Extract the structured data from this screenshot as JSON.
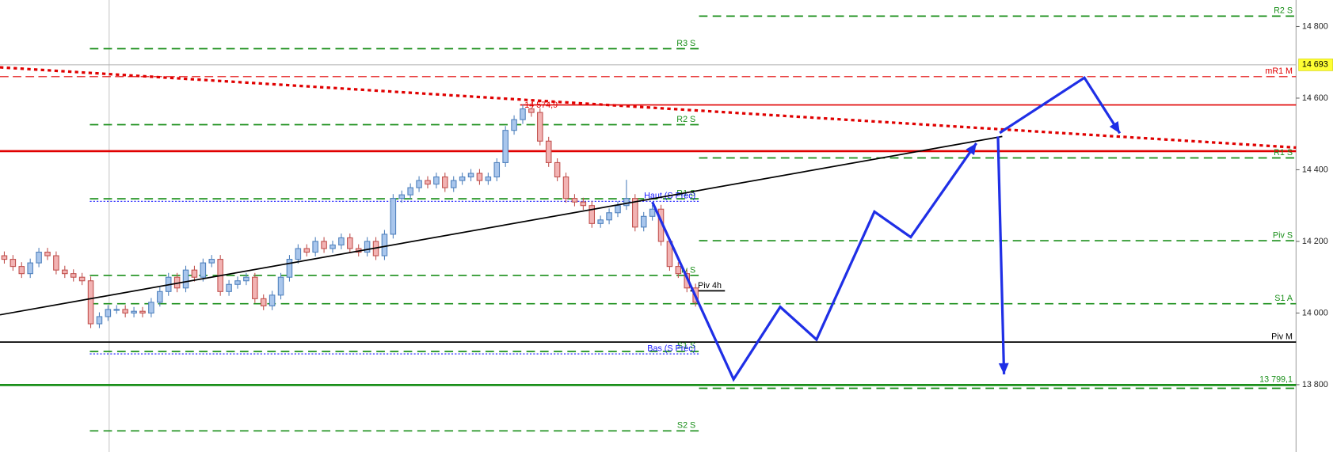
{
  "chart_data": {
    "type": "candlestick",
    "xlim": [
      -0.5,
      149.5
    ],
    "ylim": [
      13612,
      14874
    ],
    "yticks": [
      {
        "value": 13800,
        "label": "13 800"
      },
      {
        "value": 14000,
        "label": "14 000"
      },
      {
        "value": 14200,
        "label": "14 200"
      },
      {
        "value": 14400,
        "label": "14 400"
      },
      {
        "value": 14600,
        "label": "14 600"
      },
      {
        "value": 14800,
        "label": "14 800"
      }
    ],
    "up_color": "#4f81bd",
    "down_color": "#c0504d",
    "candles": [
      [
        14160,
        14172,
        14138,
        14150
      ],
      [
        14150,
        14162,
        14118,
        14130
      ],
      [
        14130,
        14142,
        14098,
        14110
      ],
      [
        14110,
        14152,
        14098,
        14140
      ],
      [
        14140,
        14182,
        14128,
        14170
      ],
      [
        14170,
        14182,
        14148,
        14160
      ],
      [
        14160,
        14172,
        14108,
        14120
      ],
      [
        14120,
        14132,
        14098,
        14110
      ],
      [
        14110,
        14122,
        14088,
        14100
      ],
      [
        14100,
        14112,
        14078,
        14090
      ],
      [
        14090,
        14102,
        13958,
        13970
      ],
      [
        13970,
        14002,
        13958,
        13990
      ],
      [
        13990,
        14022,
        13978,
        14010
      ],
      [
        14010,
        14022,
        13998,
        14010
      ],
      [
        14010,
        14022,
        13988,
        14000
      ],
      [
        14000,
        14017,
        13988,
        14005
      ],
      [
        14005,
        14017,
        13988,
        14000
      ],
      [
        14000,
        14042,
        13988,
        14030
      ],
      [
        14030,
        14072,
        14018,
        14060
      ],
      [
        14060,
        14112,
        14048,
        14100
      ],
      [
        14100,
        14112,
        14058,
        14070
      ],
      [
        14070,
        14132,
        14058,
        14120
      ],
      [
        14120,
        14132,
        14088,
        14100
      ],
      [
        14100,
        14152,
        14088,
        14140
      ],
      [
        14140,
        14162,
        14128,
        14150
      ],
      [
        14150,
        14162,
        14048,
        14060
      ],
      [
        14060,
        14092,
        14048,
        14080
      ],
      [
        14080,
        14102,
        14068,
        14090
      ],
      [
        14090,
        14112,
        14078,
        14100
      ],
      [
        14100,
        14112,
        14028,
        14040
      ],
      [
        14040,
        14052,
        14008,
        14020
      ],
      [
        14020,
        14062,
        14008,
        14050
      ],
      [
        14050,
        14112,
        14038,
        14100
      ],
      [
        14100,
        14162,
        14088,
        14150
      ],
      [
        14150,
        14192,
        14138,
        14180
      ],
      [
        14180,
        14192,
        14158,
        14170
      ],
      [
        14170,
        14212,
        14158,
        14200
      ],
      [
        14200,
        14212,
        14168,
        14180
      ],
      [
        14180,
        14202,
        14168,
        14190
      ],
      [
        14190,
        14222,
        14178,
        14210
      ],
      [
        14210,
        14222,
        14168,
        14180
      ],
      [
        14180,
        14192,
        14158,
        14170
      ],
      [
        14170,
        14212,
        14158,
        14200
      ],
      [
        14200,
        14212,
        14148,
        14160
      ],
      [
        14160,
        14232,
        14148,
        14220
      ],
      [
        14220,
        14332,
        14208,
        14320
      ],
      [
        14320,
        14342,
        14308,
        14330
      ],
      [
        14330,
        14362,
        14318,
        14350
      ],
      [
        14350,
        14382,
        14338,
        14370
      ],
      [
        14370,
        14382,
        14348,
        14360
      ],
      [
        14360,
        14392,
        14348,
        14380
      ],
      [
        14380,
        14392,
        14338,
        14350
      ],
      [
        14350,
        14382,
        14338,
        14370
      ],
      [
        14370,
        14392,
        14358,
        14380
      ],
      [
        14380,
        14402,
        14368,
        14390
      ],
      [
        14390,
        14402,
        14358,
        14370
      ],
      [
        14370,
        14392,
        14358,
        14380
      ],
      [
        14380,
        14432,
        14368,
        14420
      ],
      [
        14420,
        14522,
        14408,
        14510
      ],
      [
        14510,
        14552,
        14498,
        14540
      ],
      [
        14540,
        14582,
        14528,
        14570
      ],
      [
        14570,
        14575,
        14548,
        14560
      ],
      [
        14560,
        14572,
        14468,
        14480
      ],
      [
        14480,
        14492,
        14408,
        14420
      ],
      [
        14420,
        14432,
        14368,
        14380
      ],
      [
        14380,
        14392,
        14308,
        14320
      ],
      [
        14320,
        14332,
        14298,
        14310
      ],
      [
        14310,
        14322,
        14288,
        14300
      ],
      [
        14300,
        14312,
        14238,
        14250
      ],
      [
        14250,
        14272,
        14238,
        14260
      ],
      [
        14260,
        14292,
        14248,
        14280
      ],
      [
        14280,
        14312,
        14268,
        14300
      ],
      [
        14300,
        14372,
        14288,
        14320
      ],
      [
        14320,
        14332,
        14228,
        14240
      ],
      [
        14240,
        14282,
        14228,
        14270
      ],
      [
        14270,
        14302,
        14258,
        14290
      ],
      [
        14290,
        14302,
        14188,
        14200
      ],
      [
        14200,
        14212,
        14118,
        14130
      ],
      [
        14130,
        14142,
        14098,
        14110
      ],
      [
        14110,
        14122,
        14058,
        14070
      ],
      [
        14070,
        14082,
        14018,
        14030
      ]
    ],
    "last_price": {
      "value": 14693,
      "label": "14 693"
    },
    "levels": [
      {
        "name": "R2 S",
        "value": 14829,
        "x": [
          80.4,
          149.5
        ],
        "color": "#1a8f1a",
        "style": "dash"
      },
      {
        "name": "R3 S",
        "value": 14738,
        "x": [
          9.9,
          80.4
        ],
        "color": "#1a8f1a",
        "style": "dash"
      },
      {
        "name": "mR1 M",
        "value": 14660,
        "x": [
          -0.5,
          149.5
        ],
        "color": "#e00000",
        "style": "thin-dash"
      },
      {
        "value": 14581,
        "x": [
          59.7,
          149.5
        ],
        "color": "#e00000",
        "style": "solid"
      },
      {
        "name": "R2 S",
        "value": 14526,
        "x": [
          9.9,
          80.4
        ],
        "color": "#1a8f1a",
        "style": "dash"
      },
      {
        "value": 14452,
        "x": [
          -0.5,
          149.5
        ],
        "color": "#e00000",
        "style": "thick"
      },
      {
        "name": "R1 S",
        "value": 14433,
        "x": [
          80.4,
          149.5
        ],
        "color": "#1a8f1a",
        "style": "dash"
      },
      {
        "name": "R1 S",
        "value": 14319,
        "x": [
          9.9,
          80.4
        ],
        "color": "#1a8f1a",
        "style": "dash"
      },
      {
        "name": "Haut (S Préc)",
        "value": 14312,
        "x": [
          9.9,
          80.4
        ],
        "color": "#1a1aff",
        "style": "dot"
      },
      {
        "name": "Piv S",
        "value": 14202,
        "x": [
          80.4,
          149.5
        ],
        "color": "#1a8f1a",
        "style": "dash"
      },
      {
        "name": "Piv S",
        "value": 14105,
        "x": [
          9.9,
          80.4
        ],
        "color": "#1a8f1a",
        "style": "dash"
      },
      {
        "name": "Piv 4h",
        "value": 14062,
        "x": [
          79.4,
          83.4
        ],
        "color": "#000000",
        "style": "solid"
      },
      {
        "name": "S1 A",
        "value": 14026,
        "x": [
          9.9,
          149.5
        ],
        "color": "#1a8f1a",
        "style": "dash"
      },
      {
        "name": "Piv M",
        "value": 13919,
        "x": [
          -0.5,
          149.5
        ],
        "color": "#000000",
        "style": "solid"
      },
      {
        "name": "S1 S",
        "value": 13893,
        "x": [
          9.9,
          80.4
        ],
        "color": "#1a8f1a",
        "style": "dash"
      },
      {
        "name": "Bas (S Préc)",
        "value": 13886,
        "x": [
          9.9,
          80.4
        ],
        "color": "#1a1aff",
        "style": "dot"
      },
      {
        "name": "13 799,1",
        "value": 13799.1,
        "x": [
          -0.5,
          149.5
        ],
        "color": "#1a8f1a",
        "style": "thick"
      },
      {
        "value": 13790,
        "x": [
          80.4,
          149.5
        ],
        "color": "#1a8f1a",
        "style": "dash"
      },
      {
        "name": "S2 S",
        "value": 13671,
        "x": [
          9.9,
          80.4
        ],
        "color": "#1a8f1a",
        "style": "dash"
      }
    ],
    "trendlines": [
      {
        "x": [
          -0.5,
          115.5
        ],
        "y": [
          13995,
          14493
        ],
        "color": "#000000",
        "style": "solid"
      },
      {
        "x": [
          -0.5,
          149.5
        ],
        "y": [
          14686,
          14462
        ],
        "color": "#e00000",
        "style": "dot"
      }
    ],
    "arrows": [
      {
        "x": [
          75,
          84.4,
          89.8,
          94,
          100.7,
          104.9,
          112.5
        ],
        "y": [
          14310,
          13815,
          14017,
          13926,
          14283,
          14212,
          14474
        ],
        "color": "#1f2fe6"
      },
      {
        "x": [
          115,
          115.7
        ],
        "y": [
          14493,
          13829
        ],
        "color": "#1f2fe6"
      },
      {
        "x": [
          115.2,
          125,
          129.1
        ],
        "y": [
          14503,
          14657,
          14502
        ],
        "color": "#1f2fe6"
      }
    ],
    "annotations": [
      {
        "x": 61,
        "value": 14574.9,
        "label": "14 574,9",
        "color": "#e00000"
      }
    ]
  }
}
